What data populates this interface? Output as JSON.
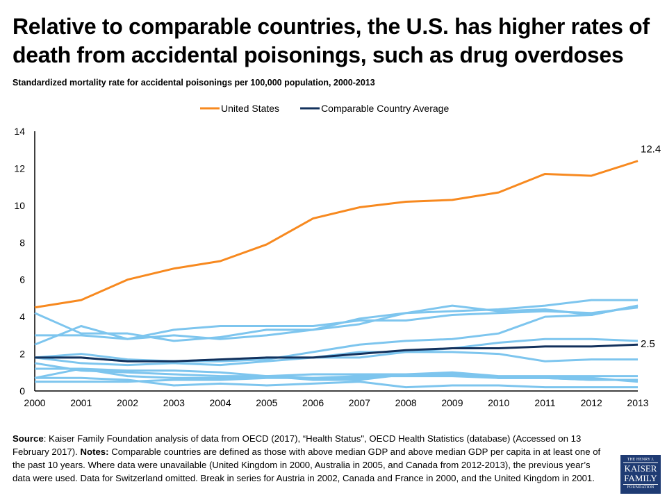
{
  "title": "Relative to comparable countries, the U.S. has higher rates of death from accidental poisonings, such as drug overdoses",
  "subtitle": "Standardized mortality rate for accidental poisonings per 100,000  population, 2000-2013",
  "chart_data": {
    "type": "line",
    "title": "Relative to comparable countries, the U.S. has higher rates of death from accidental poisonings, such as drug overdoses",
    "x": [
      2000,
      2001,
      2002,
      2003,
      2004,
      2005,
      2006,
      2007,
      2008,
      2009,
      2010,
      2011,
      2012,
      2013
    ],
    "ylim": [
      0,
      14
    ],
    "yticks": [
      0,
      2,
      4,
      6,
      8,
      10,
      12,
      14
    ],
    "grid": false,
    "legend": "top-center",
    "series": [
      {
        "name": "United States",
        "color": "#f7891f",
        "values": [
          4.5,
          4.9,
          6.0,
          6.6,
          7.0,
          7.9,
          9.3,
          9.9,
          10.2,
          10.3,
          10.7,
          11.7,
          11.6,
          12.4
        ],
        "end_label": "12.4"
      },
      {
        "name": "Comparable Country Average",
        "color": "#13315c",
        "values": [
          1.8,
          1.8,
          1.6,
          1.6,
          1.7,
          1.8,
          1.8,
          2.0,
          2.2,
          2.3,
          2.3,
          2.4,
          2.4,
          2.5
        ],
        "end_label": "2.5"
      }
    ],
    "country_series_color": "#7dc5ee",
    "country_series": [
      [
        4.2,
        3.1,
        3.1,
        2.7,
        2.9,
        3.3,
        3.3,
        3.9,
        4.2,
        4.3,
        4.4,
        4.6,
        4.9,
        4.9
      ],
      [
        2.5,
        3.5,
        2.8,
        3.0,
        2.8,
        3.0,
        3.3,
        3.6,
        4.2,
        4.6,
        4.3,
        4.4,
        4.1,
        4.6
      ],
      [
        3.0,
        3.0,
        2.8,
        3.3,
        3.5,
        3.5,
        3.5,
        3.8,
        3.8,
        4.1,
        4.2,
        4.3,
        4.2,
        4.5
      ],
      [
        1.8,
        2.0,
        1.7,
        1.6,
        1.6,
        1.7,
        2.1,
        2.5,
        2.7,
        2.8,
        3.1,
        4.0,
        4.1,
        4.6
      ],
      [
        1.8,
        1.5,
        1.4,
        1.5,
        1.4,
        1.6,
        1.8,
        1.8,
        2.1,
        2.3,
        2.6,
        2.8,
        2.8,
        2.7
      ],
      [
        1.8,
        1.8,
        1.6,
        1.6,
        1.7,
        1.8,
        1.8,
        2.1,
        2.1,
        2.1,
        2.0,
        1.6,
        1.7,
        1.7
      ],
      [
        1.5,
        1.1,
        1.0,
        0.9,
        0.8,
        0.8,
        0.7,
        0.7,
        0.9,
        1.0,
        0.8,
        0.8,
        0.8,
        0.8
      ],
      [
        1.2,
        1.2,
        1.1,
        1.1,
        1.0,
        0.8,
        0.9,
        0.9,
        0.9,
        0.9,
        0.7,
        0.7,
        0.7,
        0.5
      ],
      [
        0.7,
        1.2,
        0.8,
        0.7,
        0.7,
        0.8,
        0.6,
        0.6,
        0.9,
        0.9,
        0.7,
        0.7,
        0.6,
        0.6
      ],
      [
        0.7,
        0.7,
        0.6,
        0.3,
        0.4,
        0.3,
        0.4,
        0.5,
        0.2,
        0.3,
        0.3,
        0.2,
        0.2,
        0.2
      ],
      [
        0.5,
        0.5,
        0.5,
        0.6,
        0.6,
        0.7,
        0.7,
        0.8,
        0.8,
        0.8,
        0.7,
        0.7,
        0.6,
        0.6
      ]
    ]
  },
  "footer": {
    "source_label": "Source",
    "source_text": ": Kaiser Family Foundation  analysis of data from  OECD (2017), “Health Status\", OECD Health Statistics (database) (Accessed on 13 February 2017). ",
    "notes_label": "Notes:",
    "notes_text": " Comparable countries are defined as those with above median GDP and above median GDP per capita in at least one of the past 10 years. Where data were unavailable (United Kingdom in 2000, Australia in 2005, and Canada from 2012-2013), the previous year’s data were used. Data for Switzerland omitted.  Break in series for Austria in 2002, Canada and France in 2000, and the United Kingdom in 2001."
  },
  "logo": {
    "line1": "THE HENRY J.",
    "line2": "KAISER",
    "line3": "FAMILY",
    "line4": "FOUNDATION"
  }
}
